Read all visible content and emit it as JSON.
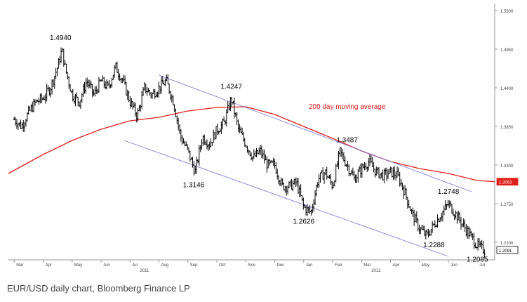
{
  "caption": "EUR/USD daily chart, Bloomberg Finance LP",
  "chart_data": {
    "type": "candlestick-bar",
    "title": "",
    "xlabel": "",
    "ylabel": "",
    "ylim": [
      1.195,
      1.56
    ],
    "grid": false,
    "colors": {
      "price": "#000000",
      "ma": "#e0201b",
      "channel": "#8080e0",
      "ma_badge": "#e0201b"
    },
    "y_ticks": [
      "1.5500",
      "1.4950",
      "1.4400",
      "1.3850",
      "1.3300",
      "1.2750",
      "1.2200"
    ],
    "y_tick_values": [
      1.55,
      1.495,
      1.44,
      1.385,
      1.33,
      1.275,
      1.22
    ],
    "x_month_labels": [
      "Mar",
      "Apr",
      "May",
      "Jun",
      "Jul",
      "Aug",
      "Sep",
      "Oct",
      "Nov",
      "Dec",
      "Jan",
      "Feb",
      "Mar",
      "Apr",
      "May",
      "Jun",
      "Jul"
    ],
    "x_month_index": [
      0,
      1,
      2,
      3,
      4,
      5,
      6,
      7,
      8,
      9,
      10,
      11,
      12,
      13,
      14,
      15,
      16
    ],
    "x_year_labels": [
      {
        "label": "2011",
        "month_index": 4.5
      },
      {
        "label": "2012",
        "month_index": 12.5
      }
    ],
    "badges": [
      {
        "label": "1.3063",
        "value": 1.3063,
        "color": "#e0201b"
      },
      {
        "label": "1.2091",
        "value": 1.2091,
        "color": "#000000"
      }
    ],
    "annotations": [
      {
        "text": "1.4940",
        "month_index": 1.6,
        "value": 1.494
      },
      {
        "text": "1.4247",
        "month_index": 7.5,
        "value": 1.4247
      },
      {
        "text": "1.3146",
        "month_index": 6.2,
        "value": 1.3146
      },
      {
        "text": "1.3487",
        "month_index": 11.5,
        "value": 1.3487
      },
      {
        "text": "1.2626",
        "month_index": 10.0,
        "value": 1.2626
      },
      {
        "text": "1.2748",
        "month_index": 15.0,
        "value": 1.2748
      },
      {
        "text": "1.2288",
        "month_index": 14.5,
        "value": 1.2288
      },
      {
        "text": "1.2085",
        "month_index": 16.0,
        "value": 1.2085
      },
      {
        "text": "200 day moving average",
        "month_index": 11.5,
        "value": 1.41,
        "color": "#e0201b"
      }
    ],
    "series": [
      {
        "name": "EUR/USD",
        "type": "ohlc",
        "x": [
          0,
          0.25,
          0.5,
          0.75,
          1.0,
          1.25,
          1.5,
          1.65,
          1.75,
          2.0,
          2.25,
          2.5,
          2.75,
          3.0,
          3.25,
          3.5,
          3.75,
          4.0,
          4.25,
          4.5,
          4.75,
          5.0,
          5.25,
          5.5,
          5.75,
          6.0,
          6.25,
          6.5,
          6.75,
          7.0,
          7.25,
          7.5,
          7.75,
          8.0,
          8.25,
          8.5,
          8.75,
          9.0,
          9.25,
          9.5,
          9.75,
          10.0,
          10.25,
          10.5,
          10.75,
          11.0,
          11.25,
          11.5,
          11.75,
          12.0,
          12.25,
          12.5,
          12.75,
          13.0,
          13.25,
          13.5,
          13.75,
          14.0,
          14.25,
          14.5,
          14.75,
          15.0,
          15.25,
          15.5,
          15.75,
          16.0,
          16.25
        ],
        "values": [
          1.395,
          1.385,
          1.405,
          1.42,
          1.425,
          1.44,
          1.47,
          1.494,
          1.47,
          1.43,
          1.42,
          1.45,
          1.43,
          1.45,
          1.44,
          1.47,
          1.45,
          1.42,
          1.4,
          1.44,
          1.43,
          1.44,
          1.45,
          1.42,
          1.37,
          1.35,
          1.32,
          1.37,
          1.36,
          1.38,
          1.39,
          1.4247,
          1.38,
          1.36,
          1.34,
          1.35,
          1.33,
          1.33,
          1.3,
          1.3,
          1.305,
          1.27,
          1.2626,
          1.31,
          1.32,
          1.3,
          1.3487,
          1.33,
          1.31,
          1.325,
          1.335,
          1.32,
          1.315,
          1.32,
          1.315,
          1.29,
          1.26,
          1.24,
          1.2288,
          1.245,
          1.26,
          1.2748,
          1.26,
          1.245,
          1.23,
          1.215,
          1.2085
        ]
      },
      {
        "name": "200 day moving average",
        "type": "line",
        "x": [
          -0.2,
          1.0,
          2.0,
          3.0,
          4.0,
          5.0,
          6.0,
          7.0,
          8.0,
          9.0,
          10.0,
          11.0,
          12.0,
          13.0,
          14.0,
          15.0,
          16.0,
          16.6
        ],
        "values": [
          1.318,
          1.345,
          1.365,
          1.381,
          1.393,
          1.398,
          1.407,
          1.412,
          1.413,
          1.402,
          1.385,
          1.368,
          1.35,
          1.335,
          1.325,
          1.318,
          1.308,
          1.3063
        ]
      },
      {
        "name": "channel-upper",
        "type": "line",
        "x": [
          5.0,
          15.8
        ],
        "values": [
          1.458,
          1.292
        ]
      },
      {
        "name": "channel-lower",
        "type": "line",
        "x": [
          3.8,
          15.0
        ],
        "values": [
          1.365,
          1.2
        ]
      }
    ]
  }
}
